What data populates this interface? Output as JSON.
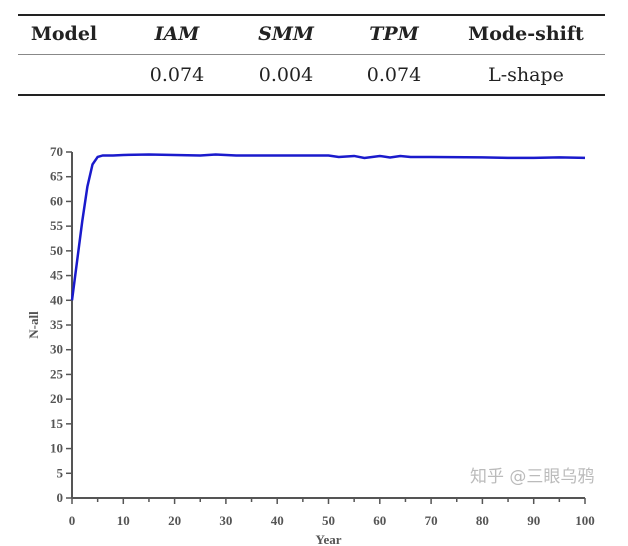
{
  "table": {
    "headers": [
      "Model",
      "IAM",
      "SMM",
      "TPM",
      "Mode-shift"
    ],
    "row": [
      "",
      "0.074",
      "0.004",
      "0.074",
      "L-shape"
    ]
  },
  "chart_data": {
    "type": "line",
    "title": "",
    "xlabel": "Year",
    "ylabel": "N-all",
    "xlim": [
      0,
      100
    ],
    "ylim": [
      0,
      70
    ],
    "xticks": [
      0,
      10,
      20,
      30,
      40,
      50,
      60,
      70,
      80,
      90,
      100
    ],
    "yticks": [
      0,
      5,
      10,
      15,
      20,
      25,
      30,
      35,
      40,
      45,
      50,
      55,
      60,
      65,
      70
    ],
    "series": [
      {
        "name": "N-all",
        "color": "#1a1acc",
        "x": [
          0,
          1,
          2,
          3,
          4,
          5,
          6,
          8,
          10,
          15,
          20,
          25,
          28,
          30,
          32,
          40,
          50,
          52,
          55,
          57,
          60,
          62,
          64,
          66,
          70,
          80,
          85,
          90,
          95,
          100
        ],
        "y": [
          40,
          48,
          56,
          63,
          67.5,
          69,
          69.3,
          69.3,
          69.4,
          69.5,
          69.4,
          69.3,
          69.5,
          69.4,
          69.3,
          69.3,
          69.3,
          69.0,
          69.2,
          68.8,
          69.2,
          68.9,
          69.2,
          69.0,
          69.0,
          68.9,
          68.8,
          68.8,
          68.9,
          68.8
        ]
      }
    ]
  },
  "watermark": "知乎 @三眼乌鸦"
}
